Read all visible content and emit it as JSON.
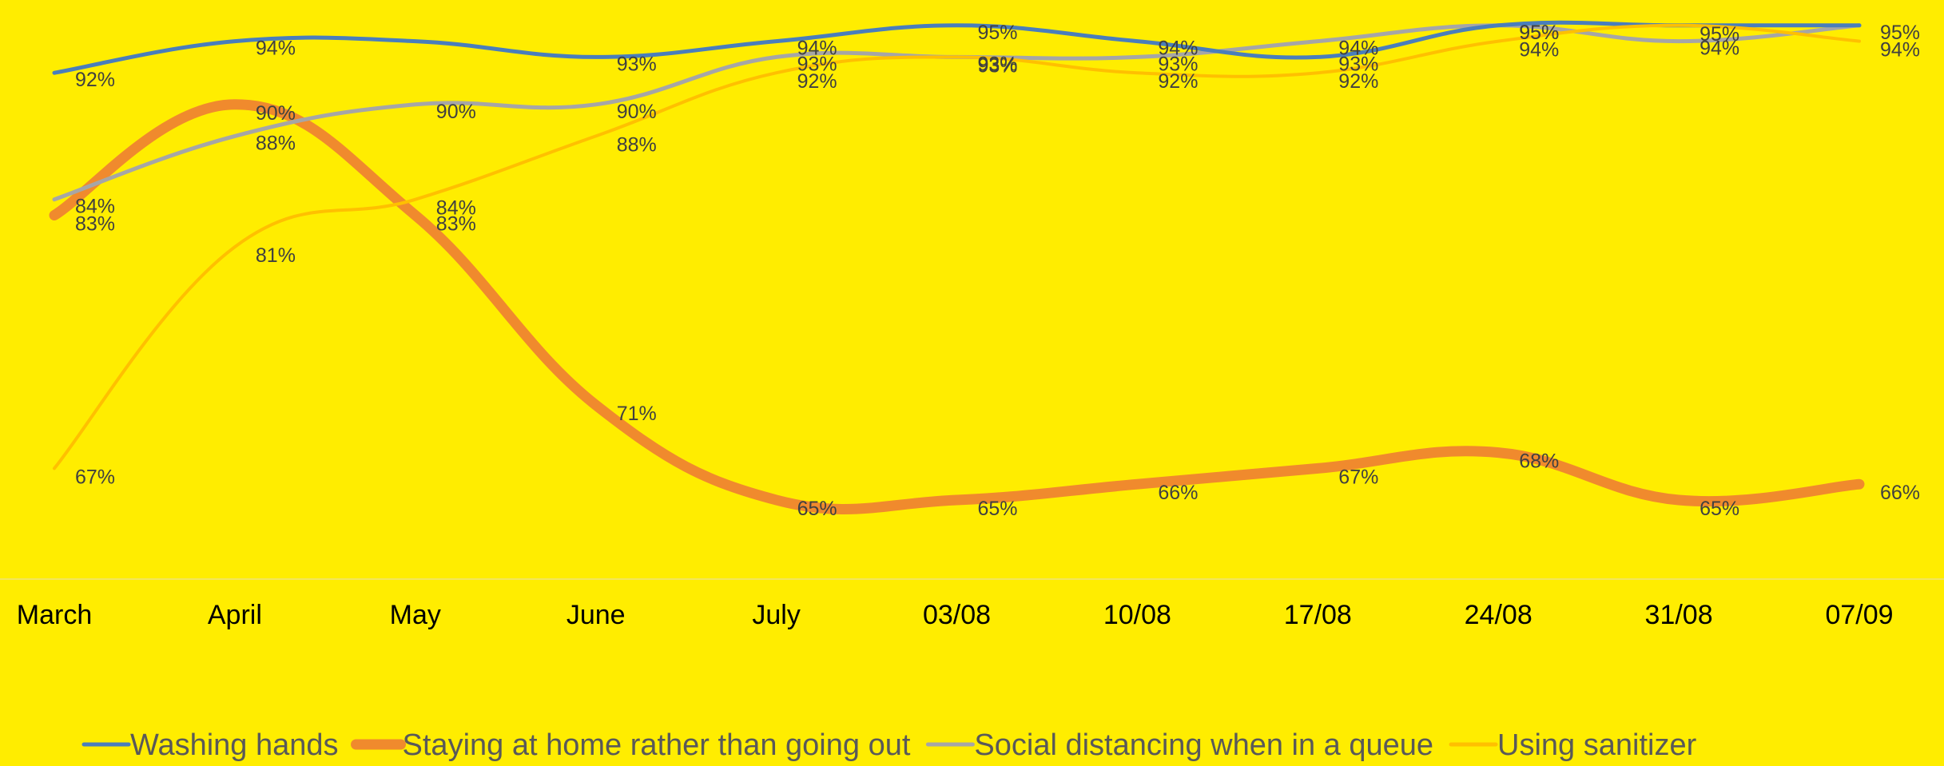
{
  "chart_data": {
    "type": "line",
    "title": "",
    "xlabel": "",
    "ylabel": "",
    "categories": [
      "March",
      "April",
      "May",
      "June",
      "July",
      "03/08",
      "10/08",
      "17/08",
      "24/08",
      "31/08",
      "07/09"
    ],
    "ylim": [
      60,
      96
    ],
    "grid": false,
    "legend_position": "bottom",
    "series": [
      {
        "name": "Washing hands",
        "color": "#4A7EBB",
        "values": [
          92,
          94,
          94,
          93,
          94,
          95,
          94,
          93,
          95,
          95,
          95
        ],
        "labels": [
          "92%",
          "94%",
          "",
          "93%",
          "94%",
          "95%",
          "94%",
          "93%",
          "95%",
          "",
          "95%"
        ]
      },
      {
        "name": "Staying at home rather than going out",
        "color": "#F08A2D",
        "values": [
          83,
          90,
          83,
          71,
          65,
          65,
          66,
          67,
          68,
          65,
          66
        ],
        "labels": [
          "83%",
          "90%",
          "83%",
          "71%",
          "65%",
          "65%",
          "66%",
          "67%",
          "68%",
          "65%",
          "66%"
        ]
      },
      {
        "name": "Social distancing when in a queue",
        "color": "#A6A6A6",
        "values": [
          84,
          88,
          90,
          90,
          93,
          93,
          93,
          94,
          95,
          94,
          95
        ],
        "labels": [
          "84%",
          "88%",
          "90%",
          "90%",
          "93%",
          "93%",
          "93%",
          "94%",
          "95%",
          "94%",
          ""
        ]
      },
      {
        "name": "Using sanitizer",
        "color": "#FFC000",
        "values": [
          67,
          81,
          84,
          88,
          92,
          93,
          92,
          92,
          94,
          95,
          94
        ],
        "labels": [
          "67%",
          "81%",
          "84%",
          "88%",
          "92%",
          "93%",
          "92%",
          "92%",
          "94%",
          "95%",
          "94%"
        ]
      }
    ]
  }
}
